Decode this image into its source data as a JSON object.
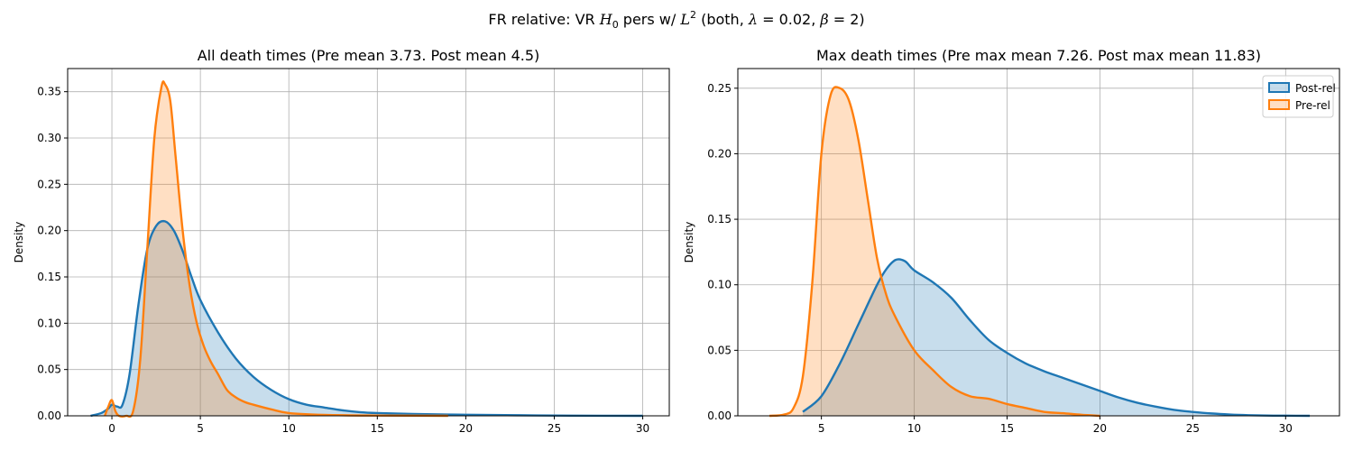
{
  "figure": {
    "suptitle": {
      "prefix": "FR relative: VR ",
      "h_sym": "H",
      "h_sub": "0",
      "mid": " pers w/ ",
      "l_sym": "L",
      "l_sup": "2",
      "paren_open": " (both, ",
      "lambda_sym": "λ",
      "lambda_val": " = 0.02, ",
      "beta_sym": "β",
      "beta_val": " = 2)"
    }
  },
  "colors": {
    "post": "#1f77b4",
    "pre": "#ff7f0e",
    "grid": "#b0b0b0"
  },
  "chart_data": [
    {
      "type": "area",
      "title": "All death times (Pre mean 3.73. Post mean 4.5)",
      "xlabel": "",
      "ylabel": "Density",
      "xlim": [
        -2.5,
        31.5
      ],
      "ylim": [
        0,
        0.375
      ],
      "xticks": [
        0,
        5,
        10,
        15,
        20,
        25,
        30
      ],
      "yticks": [
        0.0,
        0.05,
        0.1,
        0.15,
        0.2,
        0.25,
        0.3,
        0.35
      ],
      "ytick_labels": [
        "0.00",
        "0.05",
        "0.10",
        "0.15",
        "0.20",
        "0.25",
        "0.30",
        "0.35"
      ],
      "grid": true,
      "legend": null,
      "series": [
        {
          "key": "post",
          "x": [
            -1.2,
            -0.6,
            -0.2,
            0,
            0.3,
            0.6,
            1.0,
            1.5,
            2.0,
            2.5,
            3.0,
            3.5,
            4.0,
            4.5,
            5.0,
            6.0,
            7.0,
            8.0,
            9.0,
            10.0,
            11.0,
            12.0,
            13.0,
            14.0,
            15.0,
            17.0,
            20.0,
            23.0,
            26.0,
            30.0
          ],
          "y": [
            0,
            0.003,
            0.008,
            0.012,
            0.01,
            0.012,
            0.045,
            0.12,
            0.18,
            0.205,
            0.21,
            0.2,
            0.178,
            0.15,
            0.125,
            0.09,
            0.062,
            0.042,
            0.028,
            0.018,
            0.012,
            0.009,
            0.006,
            0.004,
            0.003,
            0.002,
            0.0012,
            0.0006,
            0.0002,
            0
          ]
        },
        {
          "key": "pre",
          "x": [
            -0.4,
            -0.2,
            0,
            0.2,
            0.4,
            0.8,
            1.2,
            1.6,
            2.0,
            2.4,
            2.8,
            3.0,
            3.3,
            3.6,
            4.0,
            4.4,
            4.8,
            5.2,
            5.6,
            6.0,
            6.5,
            7.0,
            7.5,
            8.0,
            9.0,
            10.0,
            12.0,
            15.0,
            19.0
          ],
          "y": [
            0,
            0.01,
            0.017,
            0.005,
            0,
            0,
            0.005,
            0.06,
            0.18,
            0.3,
            0.355,
            0.358,
            0.34,
            0.28,
            0.2,
            0.14,
            0.1,
            0.075,
            0.058,
            0.045,
            0.028,
            0.02,
            0.015,
            0.012,
            0.007,
            0.003,
            0.001,
            0.0003,
            0
          ]
        }
      ]
    },
    {
      "type": "area",
      "title": "Max death times (Pre max mean 7.26. Post max mean 11.83)",
      "xlabel": "",
      "ylabel": "Density",
      "xlim": [
        0.5,
        32.9
      ],
      "ylim": [
        0,
        0.265
      ],
      "xticks": [
        5,
        10,
        15,
        20,
        25,
        30
      ],
      "yticks": [
        0.0,
        0.05,
        0.1,
        0.15,
        0.2,
        0.25
      ],
      "ytick_labels": [
        "0.00",
        "0.05",
        "0.10",
        "0.15",
        "0.20",
        "0.25"
      ],
      "grid": true,
      "legend": {
        "position": "top-right",
        "entries": [
          "Post-rel",
          "Pre-rel"
        ]
      },
      "series": [
        {
          "key": "post",
          "name": "Post-rel",
          "x": [
            4.0,
            5.0,
            6.0,
            7.0,
            8.0,
            8.5,
            9.0,
            9.5,
            10.0,
            11.0,
            12.0,
            13.0,
            14.0,
            15.0,
            16.0,
            17.0,
            18.0,
            19.0,
            20.0,
            21.0,
            22.0,
            23.0,
            24.0,
            25.0,
            26.0,
            27.0,
            28.0,
            29.0,
            30.0,
            31.3
          ],
          "y": [
            0.003,
            0.015,
            0.04,
            0.07,
            0.1,
            0.112,
            0.119,
            0.118,
            0.111,
            0.102,
            0.09,
            0.073,
            0.058,
            0.048,
            0.04,
            0.034,
            0.029,
            0.024,
            0.019,
            0.014,
            0.01,
            0.007,
            0.0045,
            0.003,
            0.0018,
            0.001,
            0.0005,
            0.0002,
            0.0001,
            0
          ]
        },
        {
          "key": "pre",
          "name": "Pre-rel",
          "x": [
            2.2,
            3.0,
            3.5,
            4.0,
            4.5,
            5.0,
            5.5,
            6.0,
            6.5,
            7.0,
            7.5,
            8.0,
            8.5,
            9.0,
            10.0,
            11.0,
            12.0,
            13.0,
            14.0,
            15.0,
            16.0,
            17.0,
            18.0,
            19.0,
            20.0
          ],
          "y": [
            0,
            0.001,
            0.006,
            0.03,
            0.1,
            0.2,
            0.245,
            0.25,
            0.24,
            0.21,
            0.165,
            0.12,
            0.092,
            0.075,
            0.05,
            0.035,
            0.022,
            0.015,
            0.013,
            0.009,
            0.006,
            0.003,
            0.002,
            0.0008,
            0
          ]
        }
      ]
    }
  ]
}
